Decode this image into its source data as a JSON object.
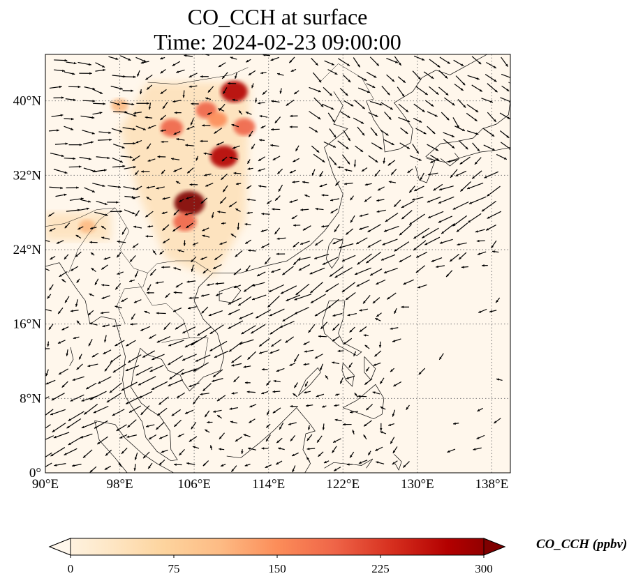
{
  "title": {
    "line1": "CO_CCH at surface",
    "line2": "Time: 2024-02-23 09:00:00"
  },
  "map": {
    "lon_range": [
      90,
      140
    ],
    "lat_range": [
      0,
      45
    ],
    "lon_ticks": [
      "90°E",
      "98°E",
      "106°E",
      "114°E",
      "122°E",
      "130°E",
      "138°E"
    ],
    "lon_tick_values": [
      90,
      98,
      106,
      114,
      122,
      130,
      138
    ],
    "lat_ticks": [
      "0°",
      "8°N",
      "16°N",
      "24°N",
      "32°N",
      "40°N"
    ],
    "lat_tick_values": [
      0,
      8,
      16,
      24,
      32,
      40
    ],
    "gridlines": "dotted",
    "overlay": "wind vectors (black arrows)",
    "colormap": "OrRd",
    "hotspots": [
      {
        "lon": 105.5,
        "lat": 29.0,
        "value": 300
      },
      {
        "lon": 109.2,
        "lat": 34.0,
        "value": 260
      },
      {
        "lon": 110.3,
        "lat": 41.0,
        "value": 250
      },
      {
        "lon": 103.6,
        "lat": 37.1,
        "value": 190
      },
      {
        "lon": 111.4,
        "lat": 37.2,
        "value": 180
      },
      {
        "lon": 107.3,
        "lat": 39.0,
        "value": 170
      },
      {
        "lon": 98.0,
        "lat": 39.5,
        "value": 120
      },
      {
        "lon": 94.5,
        "lat": 26.5,
        "value": 110
      },
      {
        "lon": 108.5,
        "lat": 38.0,
        "value": 150
      },
      {
        "lon": 105.0,
        "lat": 27.0,
        "value": 200
      }
    ]
  },
  "colorbar": {
    "label": "CO_CCH (ppbv)",
    "ticks": [
      "0",
      "75",
      "150",
      "225",
      "300"
    ],
    "tick_values": [
      0,
      75,
      150,
      225,
      300
    ],
    "range": [
      0,
      300
    ],
    "colors": [
      "#fff7ec",
      "#fee8c8",
      "#fdd49e",
      "#fdbb84",
      "#fc8d59",
      "#ef6548",
      "#d7301f",
      "#b30000",
      "#7f0000"
    ]
  }
}
